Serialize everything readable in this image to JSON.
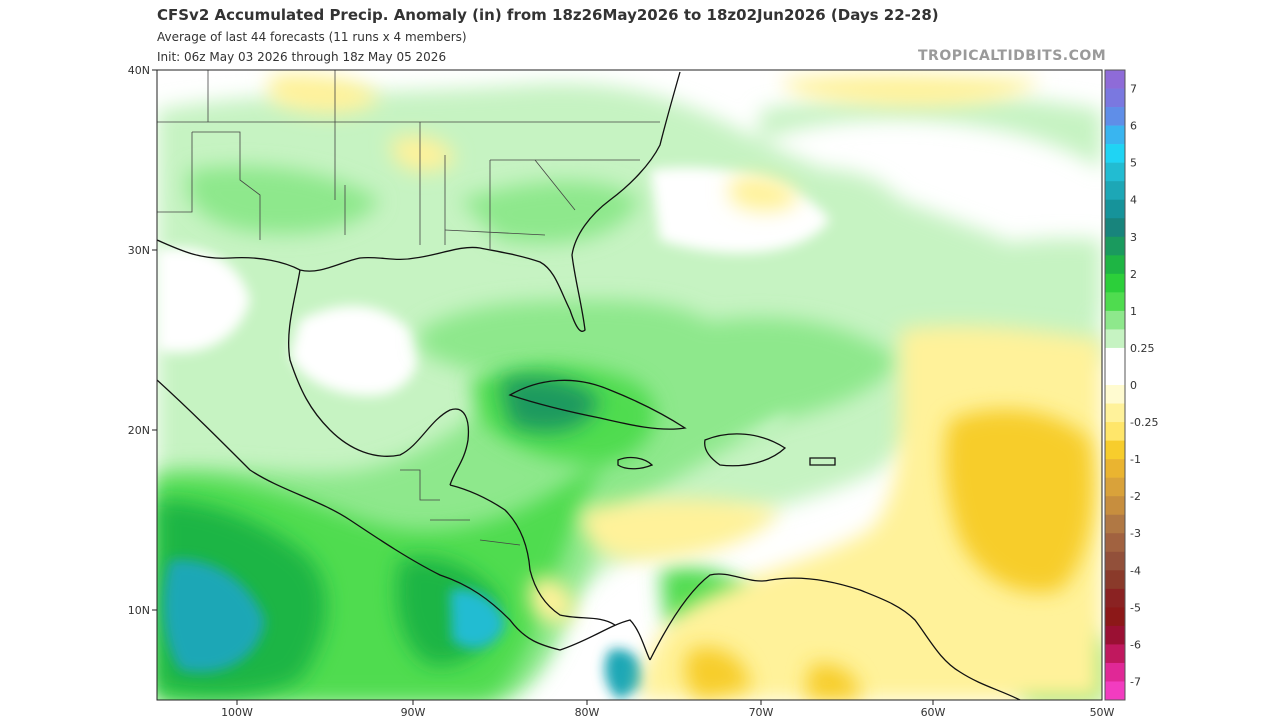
{
  "header": {
    "title": "CFSv2 Accumulated Precip. Anomaly (in) from 18z26May2026 to 18z02Jun2026 (Days 22-28)",
    "subtitle_line1": "Average of last 44 forecasts (11 runs x 4 members)",
    "subtitle_line2": "Init: 06z May 03 2026 through 18z May 05 2026",
    "brand": "TROPICALTIDBITS.COM"
  },
  "map": {
    "lat_labels": [
      "40N",
      "30N",
      "20N",
      "10N"
    ],
    "lon_labels": [
      "100W",
      "90W",
      "80W",
      "70W",
      "60W",
      "50W"
    ]
  },
  "colorbar": {
    "levels": [
      {
        "label": "7",
        "color": "#8e6bd8"
      },
      {
        "label": "",
        "color": "#7a78e0"
      },
      {
        "label": "6",
        "color": "#5f8ee8"
      },
      {
        "label": "",
        "color": "#39b5f0"
      },
      {
        "label": "5",
        "color": "#1fd4f4"
      },
      {
        "label": "",
        "color": "#22bcd2"
      },
      {
        "label": "4",
        "color": "#1da7b6"
      },
      {
        "label": "",
        "color": "#16939a"
      },
      {
        "label": "3",
        "color": "#18847c"
      },
      {
        "label": "",
        "color": "#1a9a5e"
      },
      {
        "label": "2",
        "color": "#1eb544"
      },
      {
        "label": "",
        "color": "#2ccf3a"
      },
      {
        "label": "1",
        "color": "#4fdc4f"
      },
      {
        "label": "",
        "color": "#8ee88c"
      },
      {
        "label": "0.25",
        "color": "#c6f3c2"
      },
      {
        "label": "",
        "color": "#ffffff"
      },
      {
        "label": "0",
        "color": "#ffffff"
      },
      {
        "label": "",
        "color": "#fffbd0"
      },
      {
        "label": "-0.25",
        "color": "#fff29a"
      },
      {
        "label": "",
        "color": "#ffe66a"
      },
      {
        "label": "-1",
        "color": "#f7cd2c"
      },
      {
        "label": "",
        "color": "#eab430"
      },
      {
        "label": "-2",
        "color": "#d9a23a"
      },
      {
        "label": "",
        "color": "#c78e3e"
      },
      {
        "label": "-3",
        "color": "#b07844"
      },
      {
        "label": "",
        "color": "#a16240"
      },
      {
        "label": "-4",
        "color": "#92503a"
      },
      {
        "label": "",
        "color": "#8a3a2a"
      },
      {
        "label": "-5",
        "color": "#8a2222"
      },
      {
        "label": "",
        "color": "#8c1818"
      },
      {
        "label": "-6",
        "color": "#9a1033"
      },
      {
        "label": "",
        "color": "#c0185e"
      },
      {
        "label": "-7",
        "color": "#e02896"
      },
      {
        "label": "",
        "color": "#f23cc0"
      }
    ]
  }
}
